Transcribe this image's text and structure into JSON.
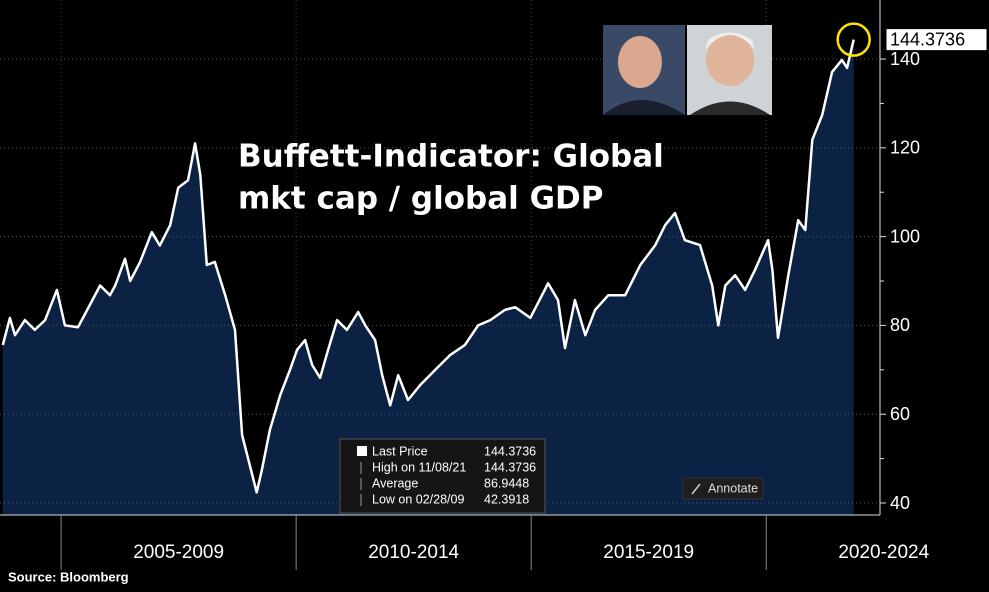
{
  "chart_data": {
    "type": "area",
    "title_lines": [
      "Buffett-Indicator: Global",
      "mkt cap / global GDP"
    ],
    "source": "Source: Bloomberg",
    "line_color": "#ffffff",
    "fill_color": "#0b2244",
    "grid": true,
    "xlim": [
      2003.7,
      2022.42
    ],
    "ylim": [
      37.3,
      153.3
    ],
    "yticks": [
      40,
      60,
      80,
      100,
      120,
      140
    ],
    "xticks": [
      {
        "value": 2007.5,
        "label": "2005-2009"
      },
      {
        "value": 2012.5,
        "label": "2010-2014"
      },
      {
        "value": 2017.5,
        "label": "2015-2019"
      },
      {
        "value": 2022.5,
        "label": "2020-2024"
      }
    ],
    "x": [
      2003.76,
      2003.91,
      2004.02,
      2004.23,
      2004.44,
      2004.66,
      2004.91,
      2005.08,
      2005.36,
      2005.61,
      2005.83,
      2006.04,
      2006.15,
      2006.36,
      2006.47,
      2006.68,
      2006.93,
      2007.1,
      2007.32,
      2007.49,
      2007.7,
      2007.85,
      2007.96,
      2008.1,
      2008.27,
      2008.49,
      2008.7,
      2008.85,
      2009.16,
      2009.27,
      2009.44,
      2009.66,
      2009.87,
      2010.02,
      2010.19,
      2010.34,
      2010.51,
      2010.68,
      2010.87,
      2011.08,
      2011.32,
      2011.47,
      2011.68,
      2011.83,
      2012.0,
      2012.17,
      2012.38,
      2012.64,
      2012.96,
      2013.27,
      2013.59,
      2013.87,
      2014.13,
      2014.44,
      2014.66,
      2014.98,
      2015.36,
      2015.57,
      2015.72,
      2015.93,
      2016.15,
      2016.36,
      2016.64,
      2017.0,
      2017.32,
      2017.64,
      2017.85,
      2018.06,
      2018.27,
      2018.59,
      2018.85,
      2018.98,
      2019.13,
      2019.34,
      2019.55,
      2019.76,
      2020.04,
      2020.13,
      2020.25,
      2020.47,
      2020.68,
      2020.83,
      2020.98,
      2021.19,
      2021.4,
      2021.61,
      2021.72,
      2021.86
    ],
    "values": [
      75.6,
      81.7,
      77.8,
      81.2,
      79,
      81.2,
      88,
      80,
      79.6,
      84.6,
      89,
      86.8,
      89,
      95,
      90,
      94.3,
      101,
      98,
      102.6,
      111,
      112.7,
      121,
      113.9,
      93.6,
      94.3,
      86.8,
      79,
      55.3,
      42.3918,
      47.4,
      56.4,
      64.3,
      70,
      74.5,
      76.7,
      71.1,
      68.2,
      74.5,
      81.2,
      79,
      83,
      80,
      76.7,
      68.8,
      62,
      68.8,
      63.2,
      66.6,
      70,
      73.3,
      75.6,
      80,
      81.2,
      83.5,
      84.1,
      81.7,
      89.5,
      85.7,
      74.9,
      85.7,
      77.8,
      83.5,
      86.8,
      86.8,
      93.6,
      98.1,
      102.6,
      105.3,
      99.2,
      98.1,
      89,
      80,
      89,
      91.3,
      88,
      92.5,
      99.2,
      92.5,
      77.2,
      91.3,
      103.7,
      101.5,
      121.8,
      127.4,
      137.1,
      139.8,
      138,
      144.3736
    ],
    "legend_stats": [
      {
        "label": "Last Price",
        "value": 144.3736
      },
      {
        "label": "High on 11/08/21",
        "value": 144.3736
      },
      {
        "label": "Average",
        "value": 86.9448
      },
      {
        "label": "Low on 02/28/09",
        "value": 42.3918
      }
    ],
    "annotate_button": "Annotate"
  }
}
